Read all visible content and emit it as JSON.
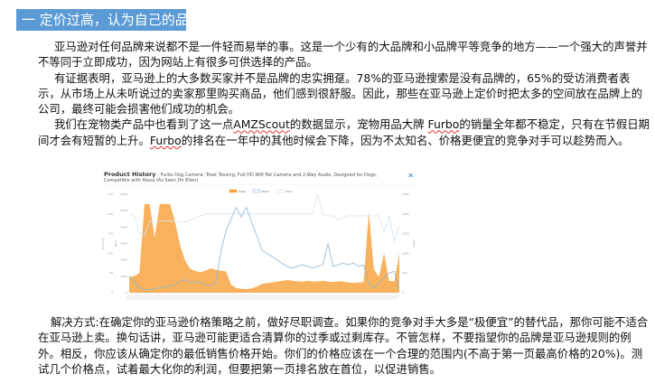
{
  "header": {
    "title": "一  定价过高，认为自己的品牌会胜出。"
  },
  "paragraphs": [
    "亚马逊对任何品牌来说都不是一件轻而易举的事。这是一个少有的大品牌和小品牌平等竞争的地方——一个强大的声誉并不等同于立即成功，因为网站上有很多可供选择的产品。",
    "有证据表明，亚马逊上的大多数买家并不是品牌的忠实拥趸。78%的亚马逊搜索是没有品牌的，65%的受访消费者表示，从市场上从未听说过的卖家那里购买商品，他们感到很舒服。因此，那些在亚马逊上定价时把太多的空间放在品牌上的公司，最终可能会损害他们成功的机会。"
  ],
  "para3": {
    "a": "我们在宠物类产品中也看到了这一点",
    "amz": "AMZScout",
    "b": "的数据显示，宠物用品大牌 ",
    "furbo1": "Furbo",
    "c": "的销量全年都不稳定，只有在节假日期间才会有短暂的上升。",
    "furbo2": "Furbo",
    "d": "的排名在一年中的其他时候会下降，因为不太知名、价格更便宜的竞争对手可以趁势而入。"
  },
  "solution": "解决方式:在确定你的亚马逊价格策略之前，做好尽职调查。如果你的竞争对手大多是“极便宜”的替代品，那你可能不适合在亚马逊上卖。换句话讲，亚马逊可能更适合清算你的过季或过剩库存。不管怎样，不要指望你的品牌是亚马逊规则的例外。相反，你应该从确定你的最低销售价格开始。你们的价格应该在一个合理的范围内(不高于第一页最高价格的20%)。测试几个价格点，试着最大化你的利润，但要把第一页排名放在首位，以促进销售。",
  "chart": {
    "title": "Product History",
    "subtitle": "- Furbo Dog Camera: Treat Tossing, Full HD Wifi Pet Camera and 2-Way Audio, Designed for Dogs, Compatible with Alexa (As Seen On Ellen)",
    "close_icon": "close-x-icon"
  },
  "chart_data": {
    "type": "line",
    "title": "Product History",
    "legend": {
      "position": "top",
      "entries": [
        "Sales",
        "Rank",
        "Price"
      ]
    },
    "colors": {
      "Sales": "#f7a541",
      "Rank": "#8fb4d6",
      "Price": "#d6e3ef"
    },
    "axes": {
      "price": {
        "label": "Price ($)",
        "ticks": [
          "250",
          "200",
          "150",
          "100",
          "50",
          "0"
        ],
        "range": [
          0,
          250
        ]
      },
      "rank": {
        "label": "Rank",
        "ticks": [
          "6000",
          "5000",
          "4000",
          "3000",
          "2000",
          "1000",
          "0"
        ],
        "range": [
          0,
          6000
        ]
      },
      "sales": {
        "label": "Sales",
        "ticks": [
          "2500",
          "2000",
          "1500",
          "1000",
          "500",
          "0"
        ],
        "range": [
          0,
          2500
        ]
      }
    },
    "series": [
      {
        "name": "Sales",
        "values": [
          400,
          420,
          500,
          2250,
          2250,
          1400,
          2250,
          2250,
          2250,
          1800,
          1200,
          800,
          600,
          550,
          520,
          560,
          620,
          580,
          560,
          540,
          200,
          120,
          100,
          90,
          110,
          150,
          220,
          240,
          260,
          280,
          300,
          320,
          300,
          290,
          280,
          300,
          280,
          290,
          300,
          280,
          270,
          290,
          280,
          260,
          250,
          260,
          270,
          2050,
          600,
          400,
          1000,
          300,
          280,
          1000
        ]
      },
      {
        "name": "Rank",
        "values": [
          1000,
          700,
          300,
          200,
          200,
          250,
          300,
          350,
          400,
          500,
          700,
          800,
          600,
          700,
          600,
          500,
          400,
          600,
          2500,
          3800,
          4500,
          5200,
          4600,
          5200,
          4300,
          3500,
          2600,
          2400,
          2200,
          2000,
          1800,
          1600,
          1500,
          1600,
          1700,
          1600,
          1500,
          1600,
          1700,
          3000,
          1600,
          1700,
          1800,
          1700,
          1800,
          1600,
          1700,
          500,
          300,
          600,
          900,
          1200,
          1300,
          100
        ]
      },
      {
        "name": "Price",
        "values": [
          200,
          195,
          150,
          145,
          180,
          180,
          181,
          182,
          183,
          180,
          180,
          180,
          185,
          190,
          195,
          200,
          200,
          200,
          200,
          200,
          200,
          200,
          200,
          200,
          200,
          200,
          200,
          200,
          200,
          200,
          200,
          200,
          200,
          200,
          200,
          200,
          200,
          250,
          200,
          195,
          195,
          185,
          190,
          195,
          195,
          195,
          195,
          195,
          195,
          195,
          155,
          195,
          130,
          170
        ]
      }
    ]
  }
}
